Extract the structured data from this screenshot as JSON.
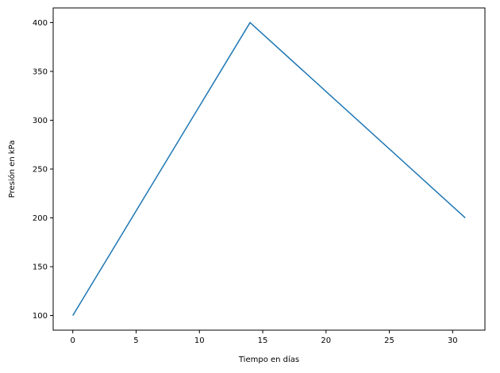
{
  "chart_data": {
    "type": "line",
    "title": "",
    "xlabel": "Tiempo en días",
    "ylabel": "Presión en kPa",
    "xlim": [
      -1.55,
      32.55
    ],
    "ylim": [
      85,
      415
    ],
    "xticks": [
      0,
      5,
      10,
      15,
      20,
      25,
      30
    ],
    "yticks": [
      100,
      150,
      200,
      250,
      300,
      350,
      400
    ],
    "xtick_labels": [
      "0",
      "5",
      "10",
      "15",
      "20",
      "25",
      "30"
    ],
    "ytick_labels": [
      "100",
      "150",
      "200",
      "250",
      "300",
      "350",
      "400"
    ],
    "grid": false,
    "legend": "none",
    "series": [
      {
        "color": "#1f77b4",
        "x": [
          0,
          14,
          31
        ],
        "y": [
          100,
          400,
          200
        ]
      }
    ]
  }
}
